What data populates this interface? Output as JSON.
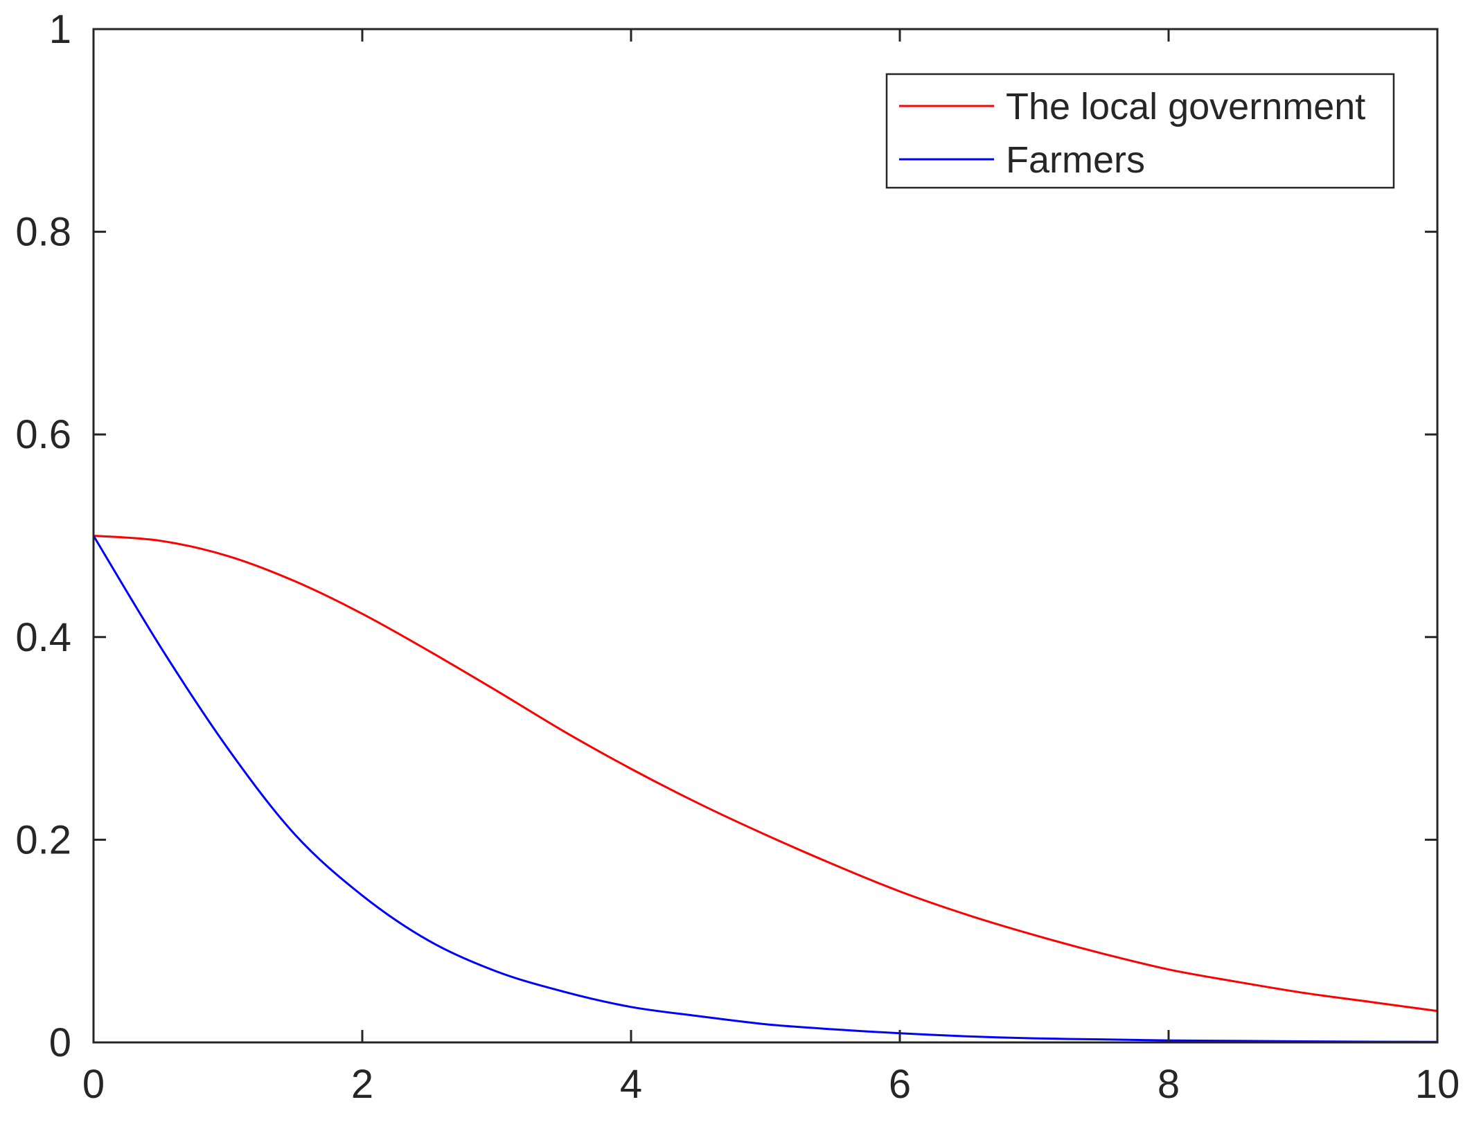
{
  "chart_data": {
    "type": "line",
    "title": "",
    "xlabel": "",
    "ylabel": "",
    "xlim": [
      0,
      10
    ],
    "ylim": [
      0,
      1
    ],
    "xticks": [
      "0",
      "2",
      "4",
      "6",
      "8",
      "10"
    ],
    "yticks": [
      "0",
      "0.2",
      "0.4",
      "0.6",
      "0.8",
      "1"
    ],
    "grid": false,
    "legend_position": "top-right",
    "x": [
      0,
      0.5,
      1,
      1.5,
      2,
      2.5,
      3,
      3.5,
      4,
      4.5,
      5,
      5.5,
      6,
      6.5,
      7,
      7.5,
      8,
      8.5,
      9,
      9.5,
      10
    ],
    "series": [
      {
        "name": "The local government",
        "color": "#ff0000",
        "values": [
          0.5,
          0.495,
          0.48,
          0.455,
          0.423,
          0.386,
          0.347,
          0.307,
          0.27,
          0.236,
          0.205,
          0.176,
          0.149,
          0.126,
          0.106,
          0.088,
          0.072,
          0.06,
          0.049,
          0.04,
          0.031
        ]
      },
      {
        "name": "Farmers",
        "color": "#0000ff",
        "values": [
          0.5,
          0.39,
          0.29,
          0.205,
          0.145,
          0.1,
          0.07,
          0.05,
          0.035,
          0.026,
          0.018,
          0.013,
          0.009,
          0.006,
          0.004,
          0.003,
          0.002,
          0.0015,
          0.001,
          0.0007,
          0.0005
        ]
      }
    ]
  }
}
